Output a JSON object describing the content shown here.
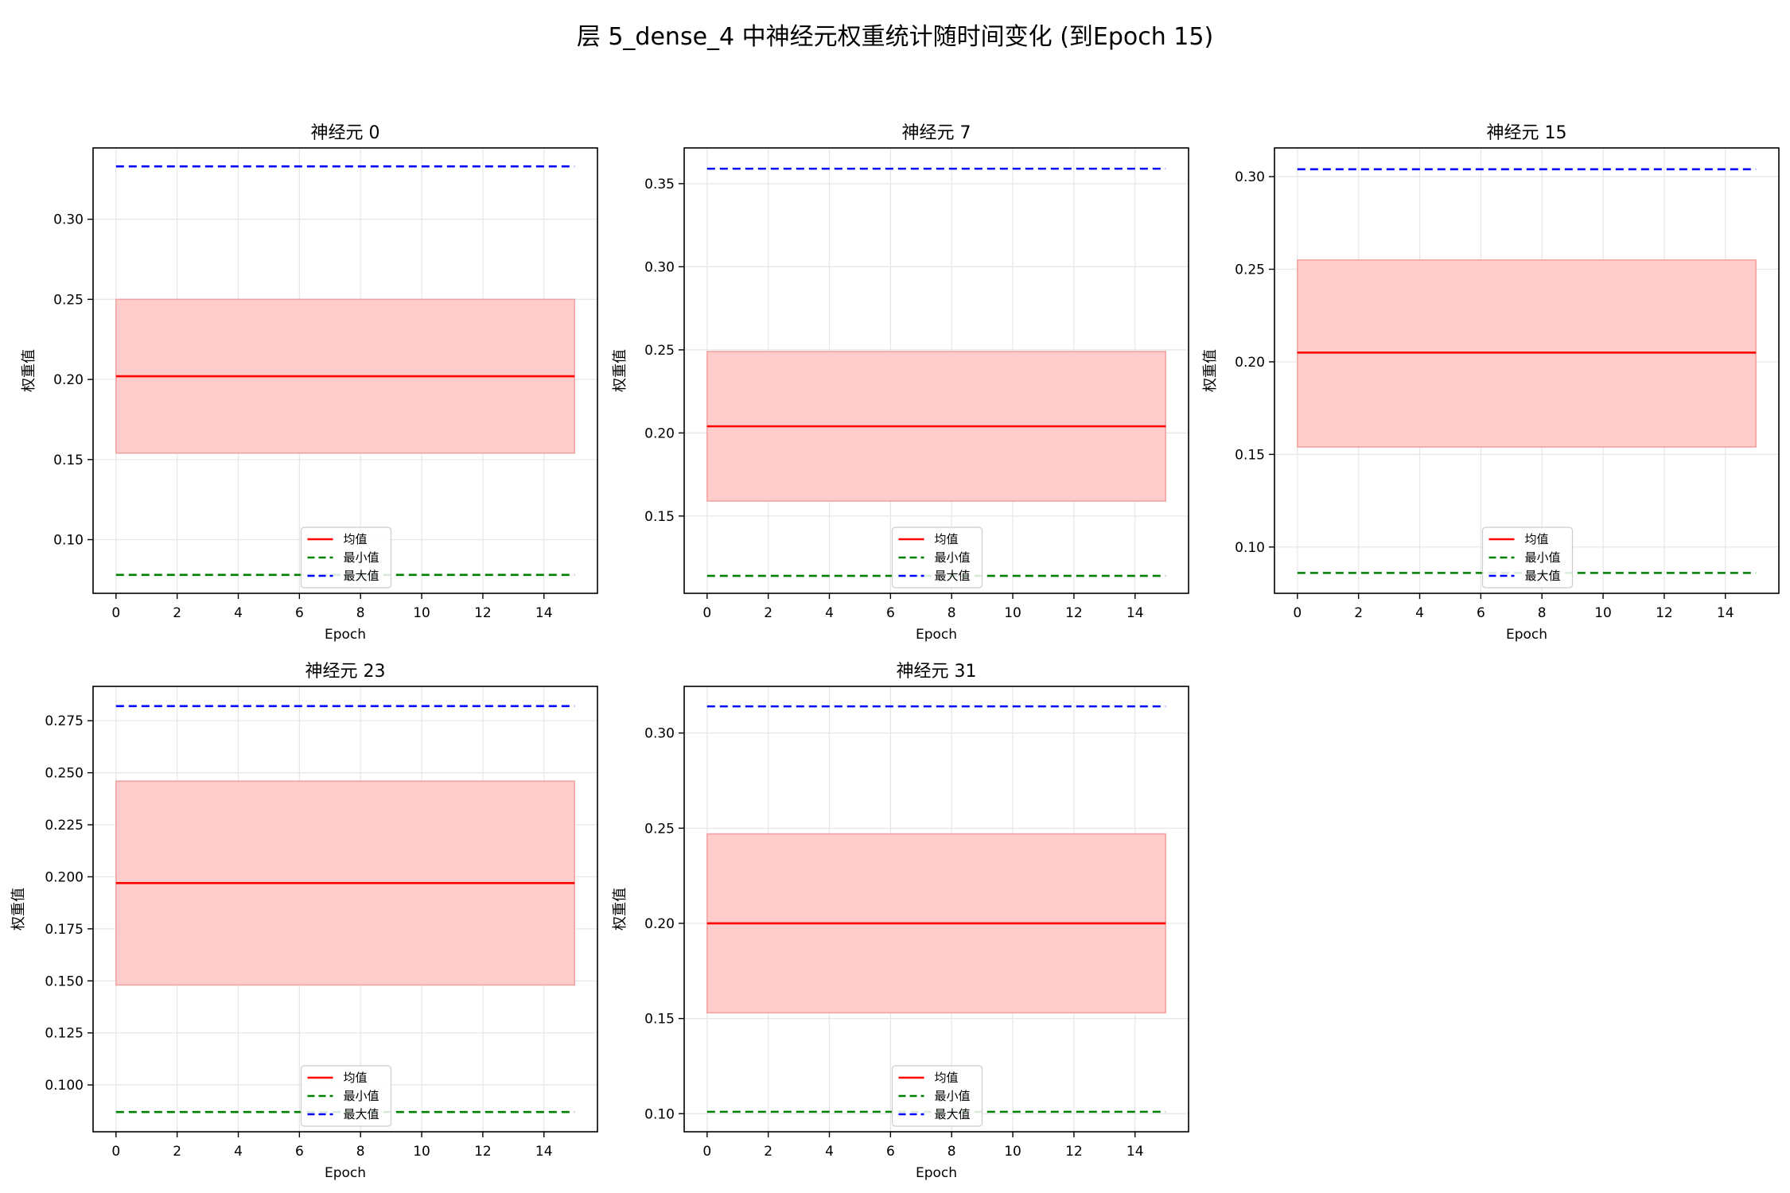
{
  "figure": {
    "suptitle": "层 5_dense_4 中神经元权重统计随时间变化 (到Epoch 15)"
  },
  "colors": {
    "mean": "#ff0000",
    "min": "#008000",
    "max": "#0000ff",
    "band": "#ffcccc",
    "band_edge": "#f3a0a0",
    "grid": "#e6e6e6"
  },
  "legend": {
    "mean_label": "均值",
    "min_label": "最小值",
    "max_label": "最大值",
    "placement": "lower center"
  },
  "chart_data": [
    {
      "type": "line",
      "title": "神经元 0",
      "xlabel": "Epoch",
      "ylabel": "权重值",
      "grid": true,
      "epochs": [
        0,
        15
      ],
      "xticks": [
        0,
        2,
        4,
        6,
        8,
        10,
        12,
        14
      ],
      "xlim": [
        -0.75,
        15.75
      ],
      "yticks": [
        "0.10",
        "0.15",
        "0.20",
        "0.25",
        "0.30"
      ],
      "ylim": [
        0.0665,
        0.3445
      ],
      "series": [
        {
          "name": "均值",
          "values": [
            0.202,
            0.202
          ]
        },
        {
          "name": "最小值",
          "values": [
            0.078,
            0.078
          ]
        },
        {
          "name": "最大值",
          "values": [
            0.333,
            0.333
          ]
        }
      ],
      "band": {
        "lower": 0.154,
        "upper": 0.25
      }
    },
    {
      "type": "line",
      "title": "神经元 7",
      "xlabel": "Epoch",
      "ylabel": "权重值",
      "grid": true,
      "epochs": [
        0,
        15
      ],
      "xticks": [
        0,
        2,
        4,
        6,
        8,
        10,
        12,
        14
      ],
      "xlim": [
        -0.75,
        15.75
      ],
      "yticks": [
        "0.15",
        "0.20",
        "0.25",
        "0.30",
        "0.35"
      ],
      "ylim": [
        0.1035,
        0.3715
      ],
      "series": [
        {
          "name": "均值",
          "values": [
            0.204,
            0.204
          ]
        },
        {
          "name": "最小值",
          "values": [
            0.114,
            0.114
          ]
        },
        {
          "name": "最大值",
          "values": [
            0.359,
            0.359
          ]
        }
      ],
      "band": {
        "lower": 0.159,
        "upper": 0.249
      }
    },
    {
      "type": "line",
      "title": "神经元 15",
      "xlabel": "Epoch",
      "ylabel": "权重值",
      "grid": true,
      "epochs": [
        0,
        15
      ],
      "xticks": [
        0,
        2,
        4,
        6,
        8,
        10,
        12,
        14
      ],
      "xlim": [
        -0.75,
        15.75
      ],
      "yticks": [
        "0.10",
        "0.15",
        "0.20",
        "0.25",
        "0.30"
      ],
      "ylim": [
        0.075,
        0.3155
      ],
      "series": [
        {
          "name": "均值",
          "values": [
            0.205,
            0.205
          ]
        },
        {
          "name": "最小值",
          "values": [
            0.086,
            0.086
          ]
        },
        {
          "name": "最大值",
          "values": [
            0.304,
            0.304
          ]
        }
      ],
      "band": {
        "lower": 0.154,
        "upper": 0.255
      }
    },
    {
      "type": "line",
      "title": "神经元 23",
      "xlabel": "Epoch",
      "ylabel": "权重值",
      "grid": true,
      "epochs": [
        0,
        15
      ],
      "xticks": [
        0,
        2,
        4,
        6,
        8,
        10,
        12,
        14
      ],
      "xlim": [
        -0.75,
        15.75
      ],
      "yticks": [
        "0.100",
        "0.125",
        "0.150",
        "0.175",
        "0.200",
        "0.225",
        "0.250",
        "0.275"
      ],
      "ylim": [
        0.0775,
        0.2915
      ],
      "series": [
        {
          "name": "均值",
          "values": [
            0.197,
            0.197
          ]
        },
        {
          "name": "最小值",
          "values": [
            0.087,
            0.087
          ]
        },
        {
          "name": "最大值",
          "values": [
            0.282,
            0.282
          ]
        }
      ],
      "band": {
        "lower": 0.148,
        "upper": 0.246
      }
    },
    {
      "type": "line",
      "title": "神经元 31",
      "xlabel": "Epoch",
      "ylabel": "权重值",
      "grid": true,
      "epochs": [
        0,
        15
      ],
      "xticks": [
        0,
        2,
        4,
        6,
        8,
        10,
        12,
        14
      ],
      "xlim": [
        -0.75,
        15.75
      ],
      "yticks": [
        "0.10",
        "0.15",
        "0.20",
        "0.25",
        "0.30"
      ],
      "ylim": [
        0.0905,
        0.3245
      ],
      "series": [
        {
          "name": "均值",
          "values": [
            0.2,
            0.2
          ]
        },
        {
          "name": "最小值",
          "values": [
            0.101,
            0.101
          ]
        },
        {
          "name": "最大值",
          "values": [
            0.314,
            0.314
          ]
        }
      ],
      "band": {
        "lower": 0.153,
        "upper": 0.247
      }
    }
  ]
}
